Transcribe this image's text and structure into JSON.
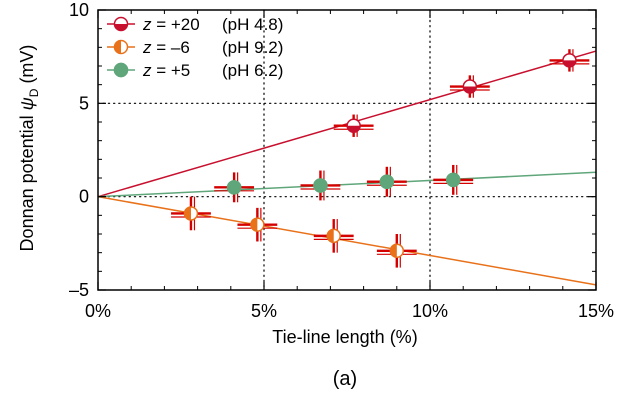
{
  "chart_data": {
    "type": "scatter",
    "xlabel": "Tie-line length (%)",
    "ylabel_prefix": "Donnan potential ",
    "ylabel_symbol": "ψ",
    "ylabel_subscript": "D",
    "ylabel_unit": " (mV)",
    "panel_label": "(a)",
    "xlim": [
      0,
      15
    ],
    "ylim": [
      -5,
      10
    ],
    "x_ticks": [
      {
        "value": 0,
        "label": "0%"
      },
      {
        "value": 5,
        "label": "5%"
      },
      {
        "value": 10,
        "label": "10%"
      },
      {
        "value": 15,
        "label": "15%"
      }
    ],
    "y_ticks": [
      {
        "value": -5,
        "label": "–5"
      },
      {
        "value": 0,
        "label": "0"
      },
      {
        "value": 5,
        "label": "5"
      },
      {
        "value": 10,
        "label": "10"
      }
    ],
    "x_minor_step": 1,
    "y_minor_step": 1,
    "grid": "dotted at x=5, x=10, y=0, y=5",
    "legend_position": "top-left",
    "series": [
      {
        "z_var": "z",
        "z_value": " = +20",
        "ph": "(pH 4.8)",
        "marker": "half-filled-bottom",
        "color": "#c8102e",
        "fit_slope": 0.52,
        "points": [
          {
            "x": 7.7,
            "y": 3.8,
            "xerr": 0.6,
            "yerr": 0.6
          },
          {
            "x": 11.2,
            "y": 5.9,
            "xerr": 0.6,
            "yerr": 0.6
          },
          {
            "x": 14.2,
            "y": 7.3,
            "xerr": 0.6,
            "yerr": 0.6
          }
        ]
      },
      {
        "z_var": "z",
        "z_value": " = –6",
        "ph": "(pH 9.2)",
        "marker": "half-filled-left",
        "color": "#e8711a",
        "fit_slope": -0.315,
        "points": [
          {
            "x": 2.8,
            "y": -0.9,
            "xerr": 0.6,
            "yerr": 0.9
          },
          {
            "x": 4.8,
            "y": -1.5,
            "xerr": 0.6,
            "yerr": 0.9
          },
          {
            "x": 7.1,
            "y": -2.1,
            "xerr": 0.6,
            "yerr": 0.9
          },
          {
            "x": 9.0,
            "y": -2.9,
            "xerr": 0.6,
            "yerr": 0.9
          }
        ]
      },
      {
        "z_var": "z",
        "z_value": " = +5",
        "ph": "(pH 6.2)",
        "marker": "filled",
        "color": "#5fa67a",
        "fit_slope": 0.087,
        "points": [
          {
            "x": 4.1,
            "y": 0.5,
            "xerr": 0.6,
            "yerr": 0.8
          },
          {
            "x": 6.7,
            "y": 0.6,
            "xerr": 0.6,
            "yerr": 0.8
          },
          {
            "x": 8.7,
            "y": 0.8,
            "xerr": 0.6,
            "yerr": 0.8
          },
          {
            "x": 10.7,
            "y": 0.9,
            "xerr": 0.6,
            "yerr": 0.8
          }
        ]
      }
    ]
  },
  "colors": {
    "errorbar": "#d40000",
    "axis": "#000000",
    "grid": "#000000"
  }
}
